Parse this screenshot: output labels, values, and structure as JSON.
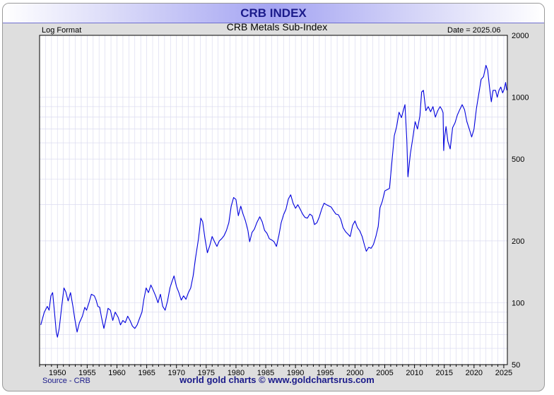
{
  "header": {
    "title": "CRB INDEX",
    "scale_note": "Log Format",
    "date_label": "Date = 2025.06"
  },
  "footer": {
    "source": "Source - CRB",
    "credit": "world gold charts © www.goldchartsrus.com"
  },
  "colors": {
    "line": "#0000dd",
    "title": "#1a1a8a",
    "grid": "#dcdcf0"
  },
  "chart_data": {
    "type": "line",
    "title": "CRB Metals Sub-Index",
    "y_scale": "log",
    "xlim": [
      1947,
      2025.6
    ],
    "ylim": [
      50,
      2000
    ],
    "x_ticks": [
      1950,
      1955,
      1960,
      1965,
      1970,
      1975,
      1980,
      1985,
      1990,
      1995,
      2000,
      2005,
      2010,
      2015,
      2020,
      2025
    ],
    "y_ticks": [
      50,
      100,
      200,
      500,
      1000,
      2000
    ],
    "grid": true,
    "series": [
      {
        "values": [
          [
            1947.2,
            78
          ],
          [
            1947.8,
            90
          ],
          [
            1948.3,
            96
          ],
          [
            1948.6,
            92
          ],
          [
            1948.9,
            108
          ],
          [
            1949.2,
            112
          ],
          [
            1949.5,
            90
          ],
          [
            1949.8,
            72
          ],
          [
            1950.0,
            68
          ],
          [
            1950.3,
            75
          ],
          [
            1950.7,
            95
          ],
          [
            1951.1,
            118
          ],
          [
            1951.4,
            113
          ],
          [
            1951.8,
            102
          ],
          [
            1952.2,
            112
          ],
          [
            1952.6,
            96
          ],
          [
            1952.9,
            84
          ],
          [
            1953.3,
            72
          ],
          [
            1953.7,
            80
          ],
          [
            1954.2,
            86
          ],
          [
            1954.6,
            95
          ],
          [
            1954.9,
            92
          ],
          [
            1955.3,
            100
          ],
          [
            1955.7,
            110
          ],
          [
            1956.2,
            108
          ],
          [
            1956.5,
            103
          ],
          [
            1956.8,
            96
          ],
          [
            1957.1,
            95
          ],
          [
            1957.4,
            85
          ],
          [
            1957.8,
            75
          ],
          [
            1958.1,
            82
          ],
          [
            1958.5,
            94
          ],
          [
            1958.9,
            92
          ],
          [
            1959.3,
            82
          ],
          [
            1959.7,
            90
          ],
          [
            1960.2,
            85
          ],
          [
            1960.6,
            78
          ],
          [
            1961.0,
            82
          ],
          [
            1961.4,
            80
          ],
          [
            1961.8,
            86
          ],
          [
            1962.2,
            82
          ],
          [
            1962.6,
            77
          ],
          [
            1963.0,
            75
          ],
          [
            1963.4,
            78
          ],
          [
            1963.8,
            84
          ],
          [
            1964.2,
            90
          ],
          [
            1964.5,
            103
          ],
          [
            1964.9,
            118
          ],
          [
            1965.3,
            112
          ],
          [
            1965.7,
            122
          ],
          [
            1966.1,
            115
          ],
          [
            1966.5,
            108
          ],
          [
            1966.9,
            100
          ],
          [
            1967.3,
            110
          ],
          [
            1967.7,
            96
          ],
          [
            1968.1,
            92
          ],
          [
            1968.5,
            102
          ],
          [
            1968.9,
            118
          ],
          [
            1969.3,
            128
          ],
          [
            1969.6,
            135
          ],
          [
            1970.0,
            120
          ],
          [
            1970.4,
            112
          ],
          [
            1970.8,
            103
          ],
          [
            1971.2,
            108
          ],
          [
            1971.6,
            104
          ],
          [
            1972.0,
            112
          ],
          [
            1972.4,
            118
          ],
          [
            1972.8,
            135
          ],
          [
            1973.2,
            165
          ],
          [
            1973.7,
            205
          ],
          [
            1974.1,
            258
          ],
          [
            1974.4,
            248
          ],
          [
            1974.8,
            205
          ],
          [
            1975.2,
            175
          ],
          [
            1975.6,
            190
          ],
          [
            1976.0,
            210
          ],
          [
            1976.4,
            198
          ],
          [
            1976.8,
            188
          ],
          [
            1977.2,
            200
          ],
          [
            1977.6,
            205
          ],
          [
            1978.0,
            212
          ],
          [
            1978.4,
            225
          ],
          [
            1978.8,
            245
          ],
          [
            1979.2,
            295
          ],
          [
            1979.6,
            325
          ],
          [
            1980.0,
            318
          ],
          [
            1980.4,
            265
          ],
          [
            1980.8,
            295
          ],
          [
            1981.2,
            270
          ],
          [
            1981.6,
            250
          ],
          [
            1982.0,
            225
          ],
          [
            1982.3,
            198
          ],
          [
            1982.7,
            220
          ],
          [
            1983.1,
            228
          ],
          [
            1983.5,
            245
          ],
          [
            1984.0,
            262
          ],
          [
            1984.4,
            248
          ],
          [
            1984.8,
            225
          ],
          [
            1985.2,
            218
          ],
          [
            1985.6,
            205
          ],
          [
            1986.0,
            202
          ],
          [
            1986.4,
            198
          ],
          [
            1986.8,
            188
          ],
          [
            1987.2,
            212
          ],
          [
            1987.6,
            245
          ],
          [
            1988.0,
            268
          ],
          [
            1988.4,
            285
          ],
          [
            1988.8,
            320
          ],
          [
            1989.2,
            335
          ],
          [
            1989.6,
            305
          ],
          [
            1990.0,
            288
          ],
          [
            1990.4,
            300
          ],
          [
            1990.8,
            285
          ],
          [
            1991.2,
            270
          ],
          [
            1991.6,
            260
          ],
          [
            1992.0,
            258
          ],
          [
            1992.4,
            270
          ],
          [
            1992.8,
            265
          ],
          [
            1993.2,
            240
          ],
          [
            1993.6,
            245
          ],
          [
            1994.0,
            262
          ],
          [
            1994.4,
            285
          ],
          [
            1994.8,
            305
          ],
          [
            1995.2,
            300
          ],
          [
            1995.6,
            296
          ],
          [
            1996.0,
            292
          ],
          [
            1996.4,
            280
          ],
          [
            1996.8,
            270
          ],
          [
            1997.2,
            268
          ],
          [
            1997.6,
            255
          ],
          [
            1998.0,
            232
          ],
          [
            1998.4,
            222
          ],
          [
            1998.8,
            216
          ],
          [
            1999.2,
            210
          ],
          [
            1999.6,
            238
          ],
          [
            2000.0,
            250
          ],
          [
            2000.4,
            232
          ],
          [
            2000.8,
            224
          ],
          [
            2001.2,
            210
          ],
          [
            2001.6,
            190
          ],
          [
            2001.9,
            178
          ],
          [
            2002.3,
            186
          ],
          [
            2002.7,
            184
          ],
          [
            2003.1,
            192
          ],
          [
            2003.5,
            210
          ],
          [
            2003.9,
            235
          ],
          [
            2004.2,
            290
          ],
          [
            2004.6,
            312
          ],
          [
            2005.0,
            350
          ],
          [
            2005.4,
            355
          ],
          [
            2005.8,
            360
          ],
          [
            2006.2,
            485
          ],
          [
            2006.6,
            650
          ],
          [
            2007.0,
            720
          ],
          [
            2007.4,
            845
          ],
          [
            2007.8,
            795
          ],
          [
            2008.2,
            880
          ],
          [
            2008.4,
            920
          ],
          [
            2008.7,
            620
          ],
          [
            2008.9,
            410
          ],
          [
            2009.3,
            530
          ],
          [
            2009.7,
            630
          ],
          [
            2010.1,
            760
          ],
          [
            2010.5,
            700
          ],
          [
            2010.9,
            810
          ],
          [
            2011.2,
            1060
          ],
          [
            2011.5,
            1080
          ],
          [
            2011.9,
            860
          ],
          [
            2012.3,
            900
          ],
          [
            2012.7,
            850
          ],
          [
            2013.1,
            900
          ],
          [
            2013.5,
            800
          ],
          [
            2013.9,
            860
          ],
          [
            2014.3,
            900
          ],
          [
            2014.6,
            870
          ],
          [
            2014.8,
            840
          ],
          [
            2014.9,
            550
          ],
          [
            2015.0,
            620
          ],
          [
            2015.3,
            720
          ],
          [
            2015.6,
            610
          ],
          [
            2016.0,
            560
          ],
          [
            2016.4,
            710
          ],
          [
            2016.8,
            750
          ],
          [
            2017.2,
            820
          ],
          [
            2017.6,
            870
          ],
          [
            2018.0,
            920
          ],
          [
            2018.4,
            870
          ],
          [
            2018.8,
            760
          ],
          [
            2019.2,
            700
          ],
          [
            2019.6,
            640
          ],
          [
            2020.0,
            700
          ],
          [
            2020.4,
            880
          ],
          [
            2020.8,
            1040
          ],
          [
            2021.2,
            1220
          ],
          [
            2021.6,
            1260
          ],
          [
            2022.0,
            1430
          ],
          [
            2022.3,
            1350
          ],
          [
            2022.6,
            1120
          ],
          [
            2022.9,
            950
          ],
          [
            2023.2,
            1080
          ],
          [
            2023.6,
            1080
          ],
          [
            2023.9,
            1000
          ],
          [
            2024.2,
            1080
          ],
          [
            2024.5,
            1120
          ],
          [
            2024.8,
            1050
          ],
          [
            2025.1,
            1100
          ],
          [
            2025.3,
            1180
          ],
          [
            2025.5,
            1080
          ]
        ]
      }
    ]
  }
}
